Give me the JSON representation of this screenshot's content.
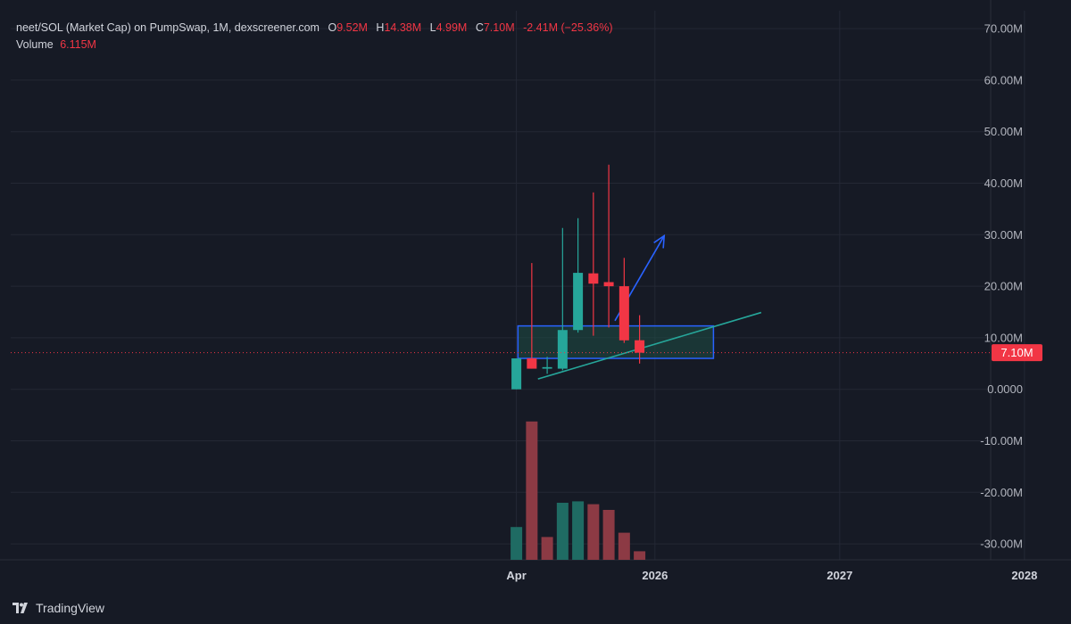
{
  "header": {
    "title": "neet/SOL (Market Cap) on PumpSwap, 1M, dexscreener.com",
    "open_key": "O",
    "open": "9.52M",
    "high_key": "H",
    "high": "14.38M",
    "low_key": "L",
    "low": "4.99M",
    "close_key": "C",
    "close": "7.10M",
    "change": "-2.41M (−25.36%)",
    "volume_label": "Volume",
    "volume": "6.115M"
  },
  "footer": {
    "brand": "TradingView",
    "logo_icon": "tradingview-logo-icon"
  },
  "colors": {
    "up": "#26a69a",
    "down": "#f23645",
    "volume_up": "#1f6b63",
    "volume_down": "#8c3a44",
    "grid": "#242835",
    "background": "#161a25",
    "zone_border": "#2962ff",
    "zone_fill": "#1f4f46",
    "trendline": "#26a69a",
    "arrow": "#2962ff",
    "price_line": "#f23645"
  },
  "chart_data": {
    "type": "candlestick",
    "y_ticks": [
      "70.00M",
      "60.00M",
      "50.00M",
      "40.00M",
      "30.00M",
      "20.00M",
      "10.00M",
      "0.0000",
      "-10.00M",
      "-20.00M",
      "-30.00M"
    ],
    "y_tick_values": [
      70,
      60,
      50,
      40,
      30,
      20,
      10,
      0,
      -10,
      -20,
      -30
    ],
    "ylim": [
      -32,
      73
    ],
    "x_ticks": [
      "Apr",
      "2026",
      "2027",
      "2028"
    ],
    "x_tick_months": [
      0,
      9,
      21,
      33
    ],
    "xlim": [
      -1.6,
      46
    ],
    "candles": [
      {
        "t": 0,
        "o": 0.0,
        "h": 6.0,
        "l": 0.0,
        "c": 6.0
      },
      {
        "t": 1,
        "o": 6.0,
        "h": 24.5,
        "l": 4.0,
        "c": 4.0
      },
      {
        "t": 2,
        "o": 4.0,
        "h": 6.3,
        "l": 3.0,
        "c": 4.3
      },
      {
        "t": 3,
        "o": 4.0,
        "h": 31.3,
        "l": 3.7,
        "c": 11.5
      },
      {
        "t": 4,
        "o": 11.5,
        "h": 33.2,
        "l": 11.0,
        "c": 22.6
      },
      {
        "t": 5,
        "o": 22.5,
        "h": 38.2,
        "l": 10.4,
        "c": 20.5
      },
      {
        "t": 6,
        "o": 20.8,
        "h": 43.6,
        "l": 12.0,
        "c": 20.0
      },
      {
        "t": 7,
        "o": 20.0,
        "h": 25.5,
        "l": 9.0,
        "c": 9.5
      },
      {
        "t": 8,
        "o": 9.52,
        "h": 14.38,
        "l": 4.99,
        "c": 7.1
      }
    ],
    "volume": [
      {
        "t": 0,
        "v": 0.23,
        "up": true
      },
      {
        "t": 1,
        "v": 0.97,
        "up": false
      },
      {
        "t": 2,
        "v": 0.16,
        "up": false
      },
      {
        "t": 3,
        "v": 0.4,
        "up": true
      },
      {
        "t": 4,
        "v": 0.41,
        "up": true
      },
      {
        "t": 5,
        "v": 0.39,
        "up": false
      },
      {
        "t": 6,
        "v": 0.35,
        "up": false
      },
      {
        "t": 7,
        "v": 0.19,
        "up": false
      },
      {
        "t": 8,
        "v": 0.06,
        "up": false
      }
    ],
    "last_price_label": "7.10M",
    "last_price": 7.1,
    "zone": {
      "t_start": 0.1,
      "t_end": 12.8,
      "low": 6.0,
      "high": 12.3
    },
    "trendline": {
      "t1": 1.4,
      "v1": 2.0,
      "t2": 15.9,
      "v2": 14.9
    },
    "arrow": {
      "t1": 6.4,
      "v1": 13.3,
      "t2": 9.6,
      "v2": 29.8
    }
  }
}
